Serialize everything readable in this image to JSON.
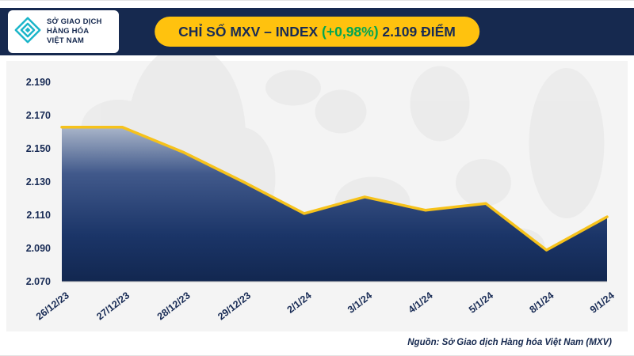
{
  "header": {
    "logo": {
      "line1": "SỞ GIAO DỊCH",
      "line2": "HÀNG HÓA",
      "line3": "VIỆT NAM"
    },
    "title": {
      "prefix": "CHỈ SỐ MXV – INDEX ",
      "change": "(+0,98%)",
      "suffix": " 2.109 ĐIỂM"
    },
    "colors": {
      "band": "#16294f",
      "banner": "#ffc20e",
      "title_text": "#182b55",
      "change_green": "#00a651"
    }
  },
  "chart_data": {
    "type": "area",
    "title": "CHỈ SỐ MXV – INDEX (+0,98%) 2.109 ĐIỂM",
    "categories": [
      "26/12/23",
      "27/12/23",
      "28/12/23",
      "29/12/23",
      "2/1/24",
      "3/1/24",
      "4/1/24",
      "5/1/24",
      "8/1/24",
      "9/1/24"
    ],
    "values": [
      2163,
      2163,
      2148,
      2130,
      2111,
      2121,
      2113,
      2117,
      2089,
      2109
    ],
    "ylim": [
      2070,
      2190
    ],
    "yticks": [
      2190,
      2170,
      2150,
      2130,
      2110,
      2090,
      2070
    ],
    "ytick_labels": [
      "2.190",
      "2.170",
      "2.150",
      "2.130",
      "2.110",
      "2.090",
      "2.070"
    ],
    "xlabel": "",
    "ylabel": "",
    "grid": false,
    "legend": "none",
    "line_color": "#f6c21b",
    "axis_text_color": "#182b55",
    "fill_stops": [
      {
        "offset": "0%",
        "color": "#a9b5c9"
      },
      {
        "offset": "30%",
        "color": "#41598b"
      },
      {
        "offset": "70%",
        "color": "#1b3568"
      },
      {
        "offset": "100%",
        "color": "#122750"
      }
    ]
  },
  "footer": {
    "source": "Nguồn: Sở Giao dịch Hàng hóa Việt Nam (MXV)"
  }
}
